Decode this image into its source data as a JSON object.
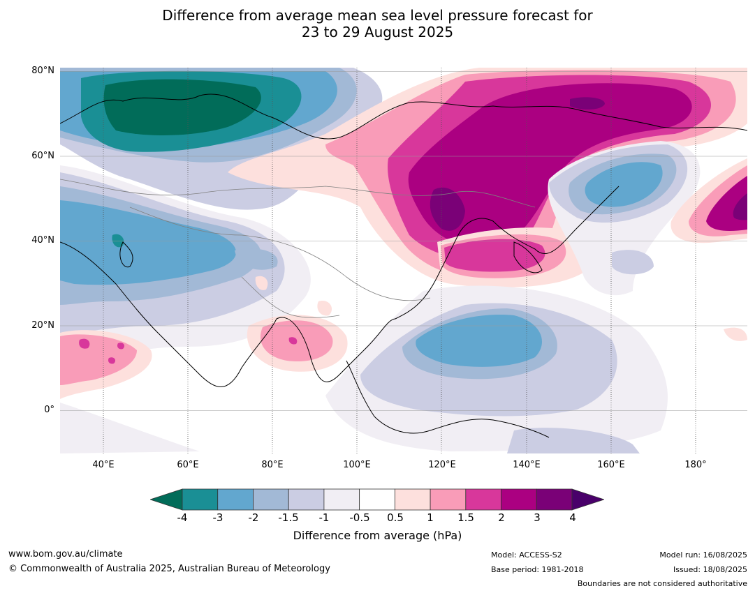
{
  "title": {
    "line1": "Difference from average mean sea level pressure forecast for",
    "line2": "23 to 29 August 2025"
  },
  "map": {
    "lon_range": [
      30,
      192
    ],
    "lat_range": [
      -10,
      81
    ],
    "lat_labels": [
      {
        "lat": 80,
        "text": "80°N"
      },
      {
        "lat": 60,
        "text": "60°N"
      },
      {
        "lat": 40,
        "text": "40°N"
      },
      {
        "lat": 20,
        "text": "20°N"
      },
      {
        "lat": 0,
        "text": "0°"
      }
    ],
    "lon_labels": [
      {
        "lon": 40,
        "text": "40°E"
      },
      {
        "lon": 60,
        "text": "60°E"
      },
      {
        "lon": 80,
        "text": "80°E"
      },
      {
        "lon": 100,
        "text": "100°E"
      },
      {
        "lon": 120,
        "text": "120°E"
      },
      {
        "lon": 140,
        "text": "140°E"
      },
      {
        "lon": 160,
        "text": "160°E"
      },
      {
        "lon": 180,
        "text": "180°"
      }
    ]
  },
  "colorbar": {
    "colors": [
      "#1a8f95",
      "#62a7cf",
      "#a2b9d6",
      "#cbcde3",
      "#f1eef4",
      "#ffffff",
      "#fde0dd",
      "#f99cb8",
      "#d8379b",
      "#ab0081",
      "#7a0177"
    ],
    "under_color": "#016c59",
    "over_color": "#49006a",
    "ticks": [
      "-4",
      "-3",
      "-2",
      "-1.5",
      "-1",
      "-0.5",
      "0.5",
      "1",
      "1.5",
      "2",
      "3",
      "4"
    ],
    "label": "Difference from average (hPa)"
  },
  "footer": {
    "website": "www.bom.gov.au/climate",
    "copyright": "© Commonwealth of Australia 2025, Australian Bureau of Meteorology",
    "model": "Model: ACCESS-S2",
    "base_period": "Base period: 1981-2018",
    "model_run": "Model run: 16/08/2025",
    "issued": "Issued: 18/08/2025",
    "disclaimer": "Boundaries are not considered authoritative"
  }
}
